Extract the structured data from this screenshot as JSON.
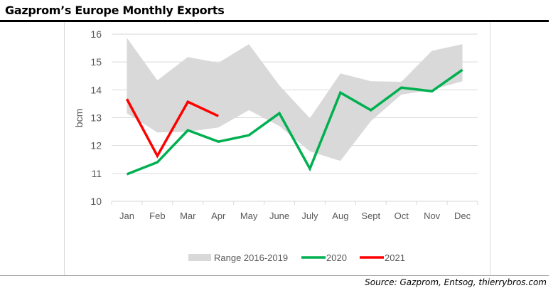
{
  "header": {
    "title": "Gazprom’s Europe Monthly Exports"
  },
  "footer": {
    "source": "Source: Gazprom, Entsog, thierrybros.com"
  },
  "chart_data": {
    "type": "line",
    "title": "Gazprom’s Europe Monthly Exports",
    "xlabel": "",
    "ylabel": "bcm",
    "ylim": [
      10,
      16
    ],
    "yticks": [
      "10",
      "11",
      "12",
      "13",
      "14",
      "15",
      "16"
    ],
    "grid": true,
    "legend_position": "bottom",
    "categories": [
      "Jan",
      "Feb",
      "Mar",
      "Apr",
      "May",
      "June",
      "July",
      "Aug",
      "Sept",
      "Oct",
      "Nov",
      "Dec"
    ],
    "range": {
      "name": "Range 2016-2019",
      "color": "#d9d9d9",
      "low": [
        13.16,
        12.47,
        12.5,
        12.65,
        13.27,
        12.7,
        11.79,
        11.45,
        12.88,
        13.83,
        14.0,
        14.31
      ],
      "high": [
        15.87,
        14.34,
        15.18,
        14.97,
        15.64,
        14.16,
        12.98,
        14.59,
        14.31,
        14.29,
        15.4,
        15.64
      ]
    },
    "series": [
      {
        "name": "2020",
        "color": "#00b050",
        "values": [
          10.97,
          11.4,
          12.55,
          12.14,
          12.37,
          13.16,
          11.17,
          13.9,
          13.27,
          14.08,
          13.95,
          14.72
        ]
      },
      {
        "name": "2021",
        "color": "#ff0000",
        "values": [
          13.67,
          11.63,
          13.57,
          13.06,
          null,
          null,
          null,
          null,
          null,
          null,
          null,
          null
        ]
      }
    ]
  }
}
